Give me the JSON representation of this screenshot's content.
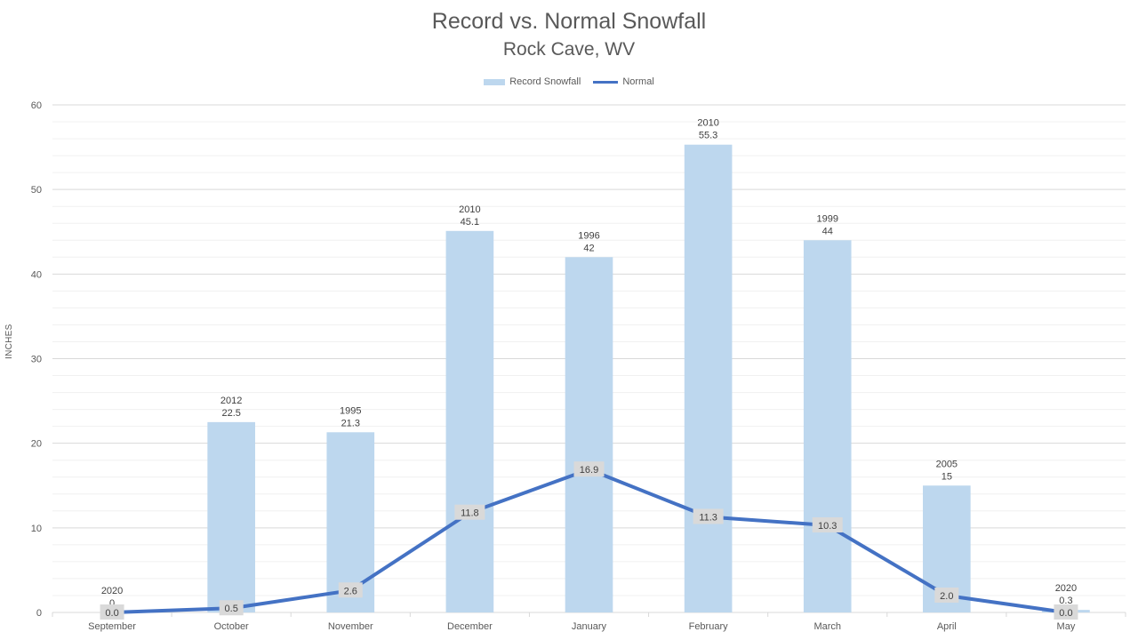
{
  "chart_data": {
    "type": "bar",
    "title": "Record vs. Normal Snowfall",
    "subtitle": "Rock Cave, WV",
    "ylabel": "INCHES",
    "xlabel": "",
    "ylim": [
      0,
      60
    ],
    "yticks": [
      0,
      10,
      20,
      30,
      40,
      50,
      60
    ],
    "grid": true,
    "legend_position": "top-center",
    "categories": [
      "September",
      "October",
      "November",
      "December",
      "January",
      "February",
      "March",
      "April",
      "May"
    ],
    "series": [
      {
        "name": "Record Snowfall",
        "type": "bar",
        "color": "#BDD7EE",
        "values": [
          0,
          22.5,
          21.3,
          45.1,
          42,
          55.3,
          44,
          15,
          0.3
        ],
        "labels": [
          "0",
          "22.5",
          "21.3",
          "45.1",
          "42",
          "55.3",
          "44",
          "15",
          "0.3"
        ],
        "years": [
          "2020",
          "2012",
          "1995",
          "2010",
          "1996",
          "2010",
          "1999",
          "2005",
          "2020"
        ]
      },
      {
        "name": "Normal",
        "type": "line",
        "color": "#4472C4",
        "values": [
          0.0,
          0.5,
          2.6,
          11.8,
          16.9,
          11.3,
          10.3,
          2.0,
          0.0
        ],
        "labels": [
          "0.0",
          "0.5",
          "2.6",
          "11.8",
          "16.9",
          "11.3",
          "10.3",
          "2.0",
          "0.0"
        ]
      }
    ]
  }
}
